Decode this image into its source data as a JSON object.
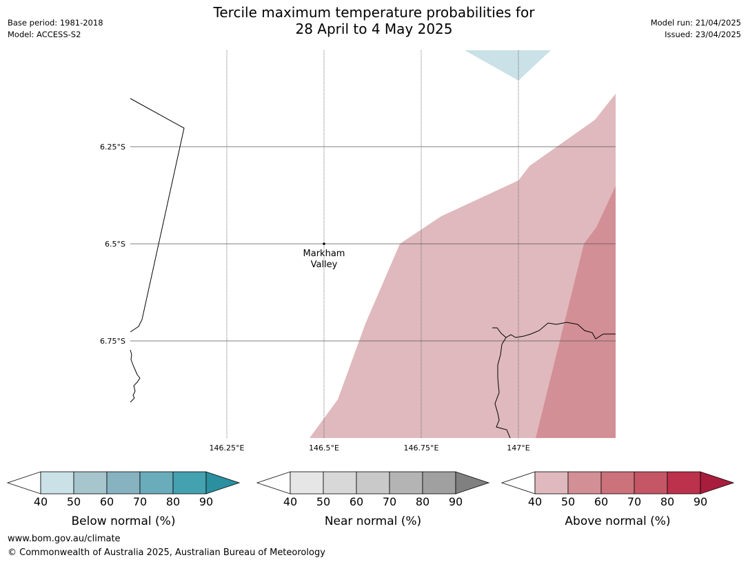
{
  "header": {
    "title_line1": "Tercile maximum temperature probabilities for",
    "title_line2": "28 April to 4 May 2025",
    "base_period": "Base period: 1981-2018",
    "model": "Model: ACCESS-S2",
    "model_run": "Model run: 21/04/2025",
    "issued": "Issued: 23/04/2025"
  },
  "map": {
    "lat_labels": [
      "6.25°S",
      "6.5°S",
      "6.75°S"
    ],
    "lon_labels": [
      "146.25°E",
      "146.5°E",
      "146.75°E",
      "147°E"
    ],
    "place": {
      "name_line1": "Markham",
      "name_line2": "Valley"
    }
  },
  "colorbars": [
    {
      "title": "Below normal (%)",
      "ticks": [
        "40",
        "50",
        "60",
        "70",
        "80",
        "90"
      ],
      "colors": [
        "#c9e1e7",
        "#a6c5cc",
        "#87b3c0",
        "#6aacba",
        "#44a1b0",
        "#2a8f9f"
      ]
    },
    {
      "title": "Near normal (%)",
      "ticks": [
        "40",
        "50",
        "60",
        "70",
        "80",
        "90"
      ],
      "colors": [
        "#e6e6e6",
        "#d8d8d8",
        "#c9c9c9",
        "#b4b4b4",
        "#a0a0a0",
        "#808080"
      ]
    },
    {
      "title": "Above normal (%)",
      "ticks": [
        "40",
        "50",
        "60",
        "70",
        "80",
        "90"
      ],
      "colors": [
        "#dfb9bd",
        "#d38f96",
        "#cc727b",
        "#c45665",
        "#bc314b",
        "#a81d3c"
      ]
    }
  ],
  "footer": {
    "url": "www.bom.gov.au/climate",
    "copyright": "© Commonwealth of Australia 2025, Australian Bureau of Meteorology"
  }
}
